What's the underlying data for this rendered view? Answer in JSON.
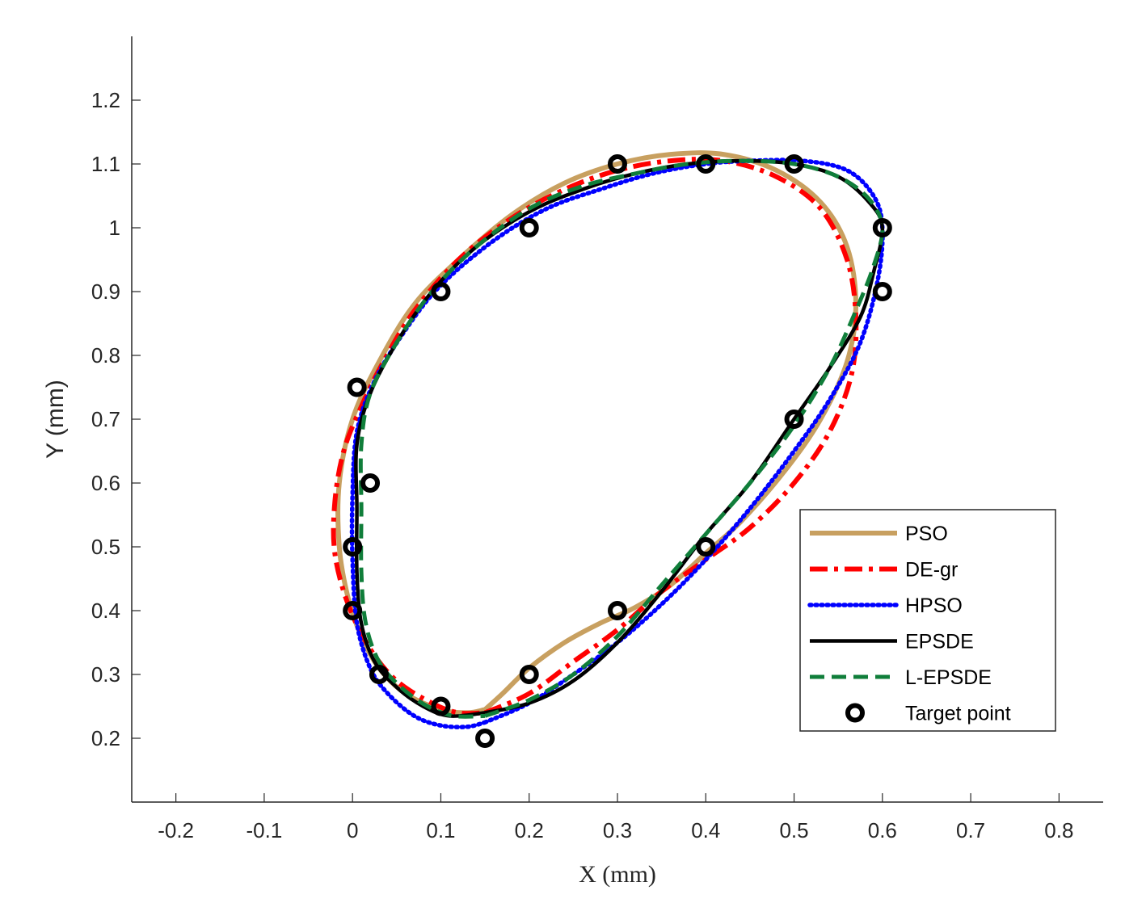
{
  "chart_data": {
    "type": "line",
    "title": "",
    "xlabel": "X (mm)",
    "ylabel": "Y (mm)",
    "xlim": [
      -0.25,
      0.85
    ],
    "ylim": [
      0.1,
      1.3
    ],
    "xticks": [
      -0.2,
      -0.1,
      0,
      0.1,
      0.2,
      0.3,
      0.4,
      0.5,
      0.6,
      0.7,
      0.8
    ],
    "xtick_labels": [
      "-0.2",
      "-0.1",
      "0",
      "0.1",
      "0.2",
      "0.3",
      "0.4",
      "0.5",
      "0.6",
      "0.7",
      "0.8"
    ],
    "yticks": [
      0.2,
      0.3,
      0.4,
      0.5,
      0.6,
      0.7,
      0.8,
      0.9,
      1.0,
      1.1,
      1.2
    ],
    "ytick_labels": [
      "0.2",
      "0.3",
      "0.4",
      "0.5",
      "0.6",
      "0.7",
      "0.8",
      "0.9",
      "1",
      "1.1",
      "1.2"
    ],
    "grid": false,
    "legend_position": "lower-right",
    "series": [
      {
        "name": "PSO",
        "color": "#c8a060",
        "style": "solid",
        "points": [
          [
            0.15,
            0.245
          ],
          [
            0.17,
            0.27
          ],
          [
            0.2,
            0.31
          ],
          [
            0.24,
            0.35
          ],
          [
            0.28,
            0.38
          ],
          [
            0.32,
            0.405
          ],
          [
            0.36,
            0.44
          ],
          [
            0.4,
            0.49
          ],
          [
            0.44,
            0.54
          ],
          [
            0.49,
            0.62
          ],
          [
            0.53,
            0.7
          ],
          [
            0.56,
            0.79
          ],
          [
            0.57,
            0.88
          ],
          [
            0.56,
            0.97
          ],
          [
            0.53,
            1.04
          ],
          [
            0.48,
            1.09
          ],
          [
            0.42,
            1.115
          ],
          [
            0.36,
            1.115
          ],
          [
            0.3,
            1.1
          ],
          [
            0.24,
            1.07
          ],
          [
            0.18,
            1.02
          ],
          [
            0.12,
            0.95
          ],
          [
            0.07,
            0.88
          ],
          [
            0.03,
            0.79
          ],
          [
            0.0,
            0.7
          ],
          [
            -0.015,
            0.6
          ],
          [
            -0.015,
            0.5
          ],
          [
            -0.005,
            0.42
          ],
          [
            0.01,
            0.36
          ],
          [
            0.03,
            0.31
          ],
          [
            0.06,
            0.27
          ],
          [
            0.1,
            0.245
          ],
          [
            0.13,
            0.24
          ],
          [
            0.15,
            0.245
          ]
        ]
      },
      {
        "name": "DE-gr",
        "color": "#ff0000",
        "style": "dashdot",
        "points": [
          [
            0.15,
            0.24
          ],
          [
            0.2,
            0.27
          ],
          [
            0.25,
            0.32
          ],
          [
            0.3,
            0.37
          ],
          [
            0.35,
            0.43
          ],
          [
            0.4,
            0.48
          ],
          [
            0.45,
            0.53
          ],
          [
            0.5,
            0.6
          ],
          [
            0.54,
            0.68
          ],
          [
            0.565,
            0.77
          ],
          [
            0.57,
            0.86
          ],
          [
            0.56,
            0.95
          ],
          [
            0.53,
            1.03
          ],
          [
            0.48,
            1.08
          ],
          [
            0.42,
            1.105
          ],
          [
            0.36,
            1.105
          ],
          [
            0.3,
            1.09
          ],
          [
            0.24,
            1.06
          ],
          [
            0.18,
            1.015
          ],
          [
            0.12,
            0.95
          ],
          [
            0.07,
            0.87
          ],
          [
            0.035,
            0.79
          ],
          [
            0.01,
            0.72
          ],
          [
            -0.01,
            0.65
          ],
          [
            -0.02,
            0.57
          ],
          [
            -0.02,
            0.49
          ],
          [
            -0.005,
            0.41
          ],
          [
            0.02,
            0.34
          ],
          [
            0.05,
            0.29
          ],
          [
            0.09,
            0.255
          ],
          [
            0.12,
            0.24
          ],
          [
            0.15,
            0.24
          ]
        ]
      },
      {
        "name": "HPSO",
        "color": "#0000ff",
        "style": "dotted",
        "points": [
          [
            0.15,
            0.225
          ],
          [
            0.2,
            0.255
          ],
          [
            0.25,
            0.3
          ],
          [
            0.3,
            0.35
          ],
          [
            0.35,
            0.41
          ],
          [
            0.4,
            0.48
          ],
          [
            0.45,
            0.56
          ],
          [
            0.5,
            0.65
          ],
          [
            0.54,
            0.73
          ],
          [
            0.575,
            0.82
          ],
          [
            0.595,
            0.92
          ],
          [
            0.6,
            1.0
          ],
          [
            0.59,
            1.05
          ],
          [
            0.56,
            1.09
          ],
          [
            0.51,
            1.105
          ],
          [
            0.45,
            1.105
          ],
          [
            0.4,
            1.1
          ],
          [
            0.34,
            1.085
          ],
          [
            0.28,
            1.06
          ],
          [
            0.22,
            1.03
          ],
          [
            0.16,
            0.98
          ],
          [
            0.1,
            0.91
          ],
          [
            0.06,
            0.84
          ],
          [
            0.025,
            0.76
          ],
          [
            0.005,
            0.68
          ],
          [
            0.0,
            0.58
          ],
          [
            0.0,
            0.48
          ],
          [
            0.005,
            0.38
          ],
          [
            0.02,
            0.31
          ],
          [
            0.04,
            0.27
          ],
          [
            0.07,
            0.235
          ],
          [
            0.1,
            0.22
          ],
          [
            0.13,
            0.218
          ],
          [
            0.15,
            0.225
          ]
        ]
      },
      {
        "name": "EPSDE",
        "color": "#000000",
        "style": "solid",
        "points": [
          [
            0.15,
            0.24
          ],
          [
            0.2,
            0.255
          ],
          [
            0.25,
            0.29
          ],
          [
            0.3,
            0.35
          ],
          [
            0.35,
            0.43
          ],
          [
            0.4,
            0.52
          ],
          [
            0.45,
            0.6
          ],
          [
            0.5,
            0.7
          ],
          [
            0.54,
            0.78
          ],
          [
            0.575,
            0.86
          ],
          [
            0.59,
            0.93
          ],
          [
            0.6,
            1.0
          ],
          [
            0.585,
            1.04
          ],
          [
            0.55,
            1.08
          ],
          [
            0.5,
            1.1
          ],
          [
            0.44,
            1.105
          ],
          [
            0.38,
            1.1
          ],
          [
            0.32,
            1.085
          ],
          [
            0.26,
            1.06
          ],
          [
            0.2,
            1.025
          ],
          [
            0.14,
            0.97
          ],
          [
            0.09,
            0.9
          ],
          [
            0.05,
            0.82
          ],
          [
            0.02,
            0.74
          ],
          [
            0.005,
            0.66
          ],
          [
            0.005,
            0.56
          ],
          [
            0.005,
            0.46
          ],
          [
            0.01,
            0.38
          ],
          [
            0.025,
            0.32
          ],
          [
            0.05,
            0.28
          ],
          [
            0.08,
            0.25
          ],
          [
            0.11,
            0.235
          ],
          [
            0.15,
            0.24
          ]
        ]
      },
      {
        "name": "L-EPSDE",
        "color": "#107e3a",
        "style": "dashed",
        "points": [
          [
            0.15,
            0.235
          ],
          [
            0.2,
            0.26
          ],
          [
            0.25,
            0.3
          ],
          [
            0.3,
            0.36
          ],
          [
            0.35,
            0.44
          ],
          [
            0.4,
            0.52
          ],
          [
            0.45,
            0.6
          ],
          [
            0.5,
            0.69
          ],
          [
            0.54,
            0.78
          ],
          [
            0.57,
            0.87
          ],
          [
            0.59,
            0.94
          ],
          [
            0.6,
            1.0
          ],
          [
            0.585,
            1.045
          ],
          [
            0.55,
            1.08
          ],
          [
            0.5,
            1.1
          ],
          [
            0.44,
            1.105
          ],
          [
            0.38,
            1.1
          ],
          [
            0.32,
            1.085
          ],
          [
            0.26,
            1.065
          ],
          [
            0.2,
            1.03
          ],
          [
            0.14,
            0.97
          ],
          [
            0.09,
            0.9
          ],
          [
            0.05,
            0.82
          ],
          [
            0.02,
            0.74
          ],
          [
            0.01,
            0.66
          ],
          [
            0.01,
            0.56
          ],
          [
            0.01,
            0.46
          ],
          [
            0.015,
            0.38
          ],
          [
            0.03,
            0.32
          ],
          [
            0.055,
            0.28
          ],
          [
            0.085,
            0.25
          ],
          [
            0.115,
            0.235
          ],
          [
            0.15,
            0.235
          ]
        ]
      },
      {
        "name": "Target point",
        "color": "#000000",
        "style": "markers",
        "points": [
          [
            0.3,
            1.1
          ],
          [
            0.4,
            1.1
          ],
          [
            0.5,
            1.1
          ],
          [
            0.6,
            1.0
          ],
          [
            0.6,
            0.9
          ],
          [
            0.5,
            0.7
          ],
          [
            0.4,
            0.5
          ],
          [
            0.3,
            0.4
          ],
          [
            0.2,
            0.3
          ],
          [
            0.15,
            0.2
          ],
          [
            0.1,
            0.25
          ],
          [
            0.03,
            0.3
          ],
          [
            0.0,
            0.4
          ],
          [
            0.0,
            0.5
          ],
          [
            0.02,
            0.6
          ],
          [
            0.005,
            0.75
          ],
          [
            0.1,
            0.9
          ],
          [
            0.2,
            1.0
          ]
        ]
      }
    ]
  }
}
